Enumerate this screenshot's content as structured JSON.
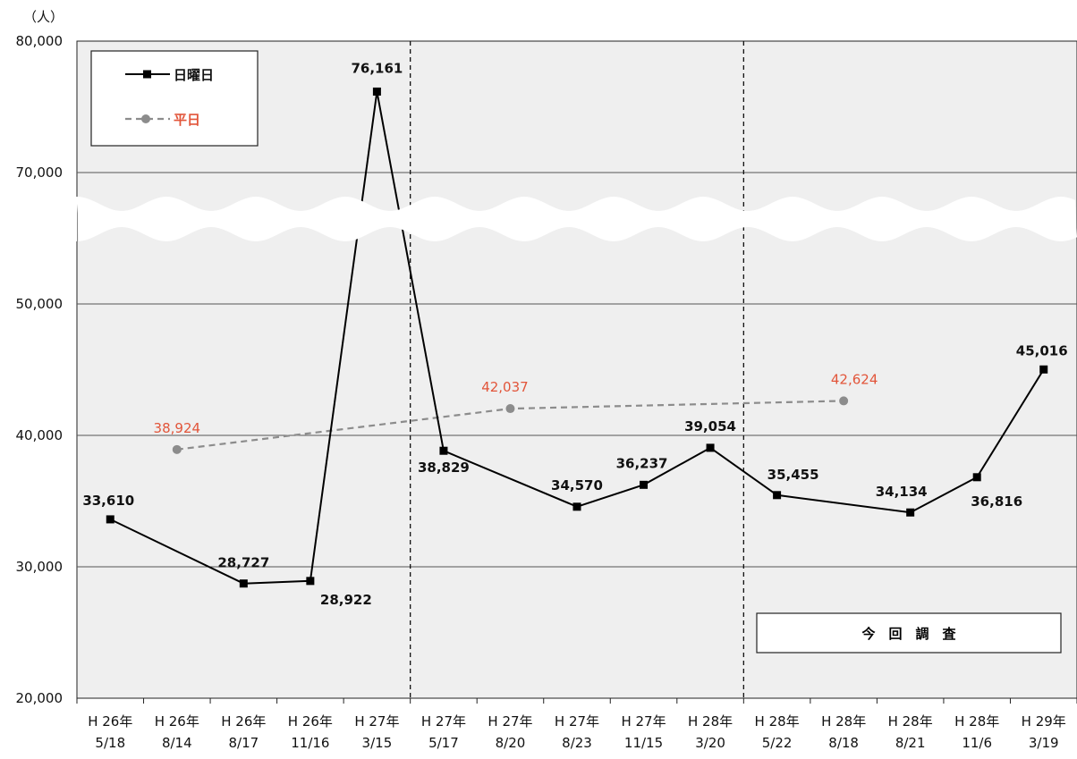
{
  "chart_data": {
    "type": "line",
    "unit_label": "（人）",
    "categories": [
      [
        "H 26年",
        "5/18"
      ],
      [
        "H 26年",
        "8/14"
      ],
      [
        "H 26年",
        "8/17"
      ],
      [
        "H 26年",
        "11/16"
      ],
      [
        "H 27年",
        "3/15"
      ],
      [
        "H 27年",
        "5/17"
      ],
      [
        "H 27年",
        "8/20"
      ],
      [
        "H 27年",
        "8/23"
      ],
      [
        "H 27年",
        "11/15"
      ],
      [
        "H 28年",
        "3/20"
      ],
      [
        "H 28年",
        "5/22"
      ],
      [
        "H 28年",
        "8/18"
      ],
      [
        "H 28年",
        "8/21"
      ],
      [
        "H 28年",
        "11/6"
      ],
      [
        "H 29年",
        "3/19"
      ]
    ],
    "y_ticks": [
      "20,000",
      "30,000",
      "40,000",
      "50,000",
      "70,000",
      "80,000"
    ],
    "y_axis_break": [
      50000,
      70000
    ],
    "series": [
      {
        "name": "日曜日",
        "color": "#000000",
        "marker": "square",
        "style": "solid",
        "points": [
          {
            "i": 0,
            "value": 33610,
            "label": "33,610"
          },
          {
            "i": 2,
            "value": 28727,
            "label": "28,727"
          },
          {
            "i": 3,
            "value": 28922,
            "label": "28,922"
          },
          {
            "i": 4,
            "value": 76161,
            "label": "76,161"
          },
          {
            "i": 5,
            "value": 38829,
            "label": "38,829"
          },
          {
            "i": 7,
            "value": 34570,
            "label": "34,570"
          },
          {
            "i": 8,
            "value": 36237,
            "label": "36,237"
          },
          {
            "i": 9,
            "value": 39054,
            "label": "39,054"
          },
          {
            "i": 10,
            "value": 35455,
            "label": "35,455"
          },
          {
            "i": 12,
            "value": 34134,
            "label": "34,134"
          },
          {
            "i": 13,
            "value": 36816,
            "label": "36,816"
          },
          {
            "i": 14,
            "value": 45016,
            "label": "45,016"
          }
        ]
      },
      {
        "name": "平日",
        "color": "#8c8c8c",
        "label_color": "#e2553a",
        "marker": "circle",
        "style": "dashed",
        "points": [
          {
            "i": 1,
            "value": 38924,
            "label": "38,924"
          },
          {
            "i": 6,
            "value": 42037,
            "label": "42,037"
          },
          {
            "i": 11,
            "value": 42624,
            "label": "42,624"
          }
        ]
      }
    ],
    "current_survey_label": "今　回　調　査",
    "period_dividers_after": [
      4,
      9
    ],
    "grid": true,
    "legend_position": "top-left"
  }
}
